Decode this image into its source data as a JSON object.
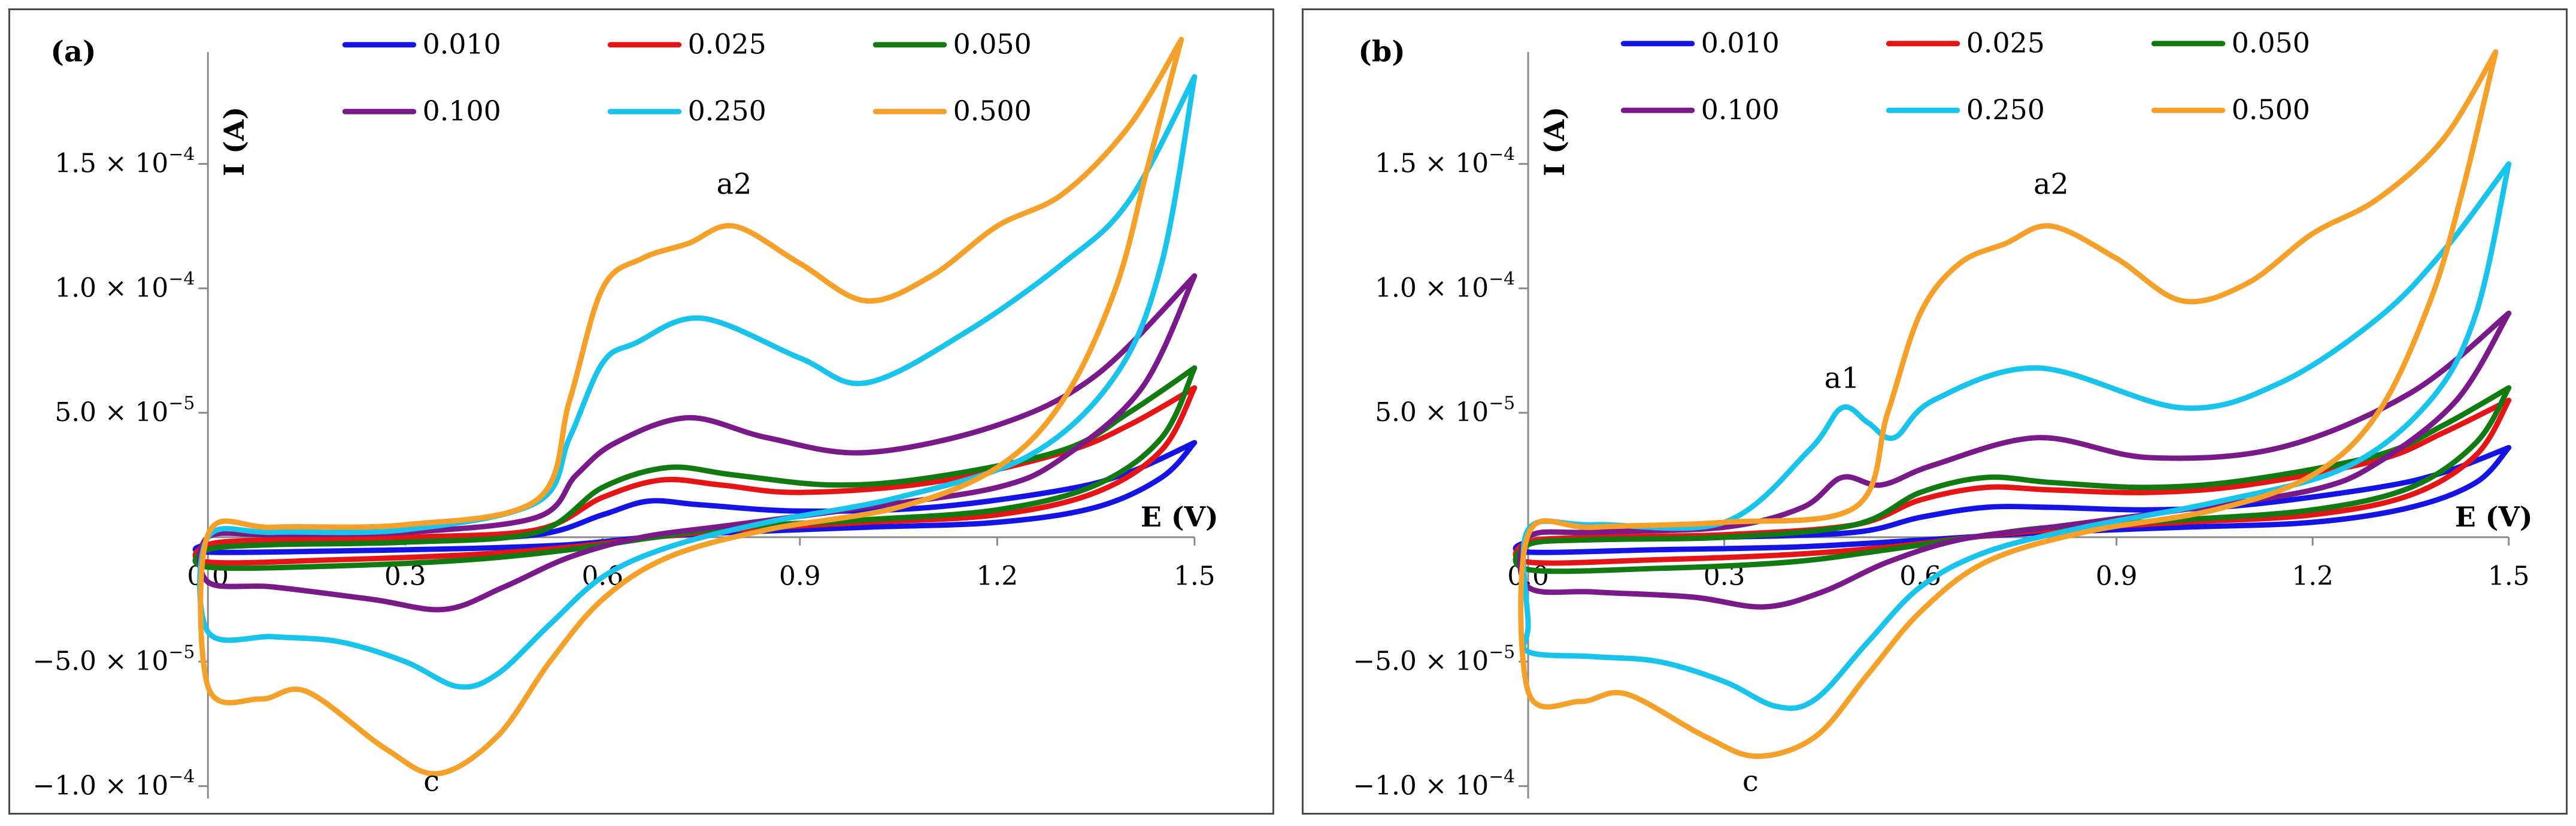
{
  "chart_data": [
    {
      "type": "line",
      "panel_label": "(a)",
      "xlabel": "E (V)",
      "ylabel": "I (A)",
      "xlim": [
        0,
        1.5
      ],
      "ylim": [
        -0.000105,
        0.000195
      ],
      "x_ticks": [
        {
          "value": 0.0,
          "label": "0.0"
        },
        {
          "value": 0.3,
          "label": "0.3"
        },
        {
          "value": 0.6,
          "label": "0.6"
        },
        {
          "value": 0.9,
          "label": "0.9"
        },
        {
          "value": 1.2,
          "label": "1.2"
        },
        {
          "value": 1.5,
          "label": "1.5"
        }
      ],
      "y_ticks": [
        {
          "value": 0.00015,
          "mantissa": "1.5",
          "exp": "−4"
        },
        {
          "value": 0.0001,
          "mantissa": "1.0",
          "exp": "−4"
        },
        {
          "value": 5e-05,
          "mantissa": "5.0",
          "exp": "−5"
        },
        {
          "value": -5e-05,
          "mantissa": "−5.0",
          "exp": "−5"
        },
        {
          "value": -0.0001,
          "mantissa": "−1.0",
          "exp": "−4"
        }
      ],
      "annotations": [
        {
          "text": "a2",
          "x": 0.8,
          "y": 0.000138
        },
        {
          "text": "c",
          "x": 0.34,
          "y": -0.000102
        }
      ],
      "series": [
        {
          "name": "0.010",
          "color": "#1414e6",
          "x": [
            1.5,
            1.45,
            1.35,
            1.2,
            1.0,
            0.8,
            0.67,
            0.55,
            0.4,
            0.2,
            0.0,
            0.0,
            0.1,
            0.3,
            0.5,
            0.6,
            0.67,
            0.75,
            0.9,
            1.1,
            1.3,
            1.4,
            1.5
          ],
          "y": [
            3.8e-05,
            2.4e-05,
            1.2e-05,
            6e-06,
            4e-06,
            2e-06,
            0,
            -3e-06,
            -4.5e-06,
            -5.5e-06,
            -6e-06,
            -3e-06,
            -2e-06,
            -1e-06,
            1e-06,
            9e-06,
            1.45e-05,
            1.3e-05,
            1.05e-05,
            1.2e-05,
            1.9e-05,
            2.6e-05,
            3.8e-05
          ]
        },
        {
          "name": "0.025",
          "color": "#e61414",
          "x": [
            1.5,
            1.45,
            1.35,
            1.2,
            1.0,
            0.8,
            0.68,
            0.55,
            0.4,
            0.2,
            0.0,
            0.0,
            0.1,
            0.3,
            0.5,
            0.6,
            0.69,
            0.78,
            0.9,
            1.1,
            1.3,
            1.4,
            1.5
          ],
          "y": [
            6e-05,
            3.5e-05,
            1.8e-05,
            9e-06,
            6e-06,
            3e-06,
            0,
            -4e-06,
            -7e-06,
            -9e-06,
            -1e-05,
            -3e-06,
            -1e-06,
            0,
            3e-06,
            1.6e-05,
            2.3e-05,
            2.1e-05,
            1.8e-05,
            2.2e-05,
            3.4e-05,
            4.5e-05,
            6e-05
          ]
        },
        {
          "name": "0.050",
          "color": "#117a11",
          "x": [
            1.5,
            1.45,
            1.35,
            1.2,
            1.0,
            0.8,
            0.68,
            0.55,
            0.4,
            0.2,
            0.0,
            0.0,
            0.1,
            0.3,
            0.5,
            0.6,
            0.7,
            0.8,
            0.95,
            1.1,
            1.3,
            1.4,
            1.5
          ],
          "y": [
            6.8e-05,
            4e-05,
            2.1e-05,
            1.1e-05,
            7e-06,
            4e-06,
            0,
            -5e-06,
            -9e-06,
            -1.15e-05,
            -1.2e-05,
            -5e-06,
            -3e-06,
            -2e-06,
            2e-06,
            2e-05,
            2.8e-05,
            2.5e-05,
            2.1e-05,
            2.4e-05,
            3.5e-05,
            5e-05,
            6.8e-05
          ]
        },
        {
          "name": "0.100",
          "color": "#7a1a8a",
          "x": [
            1.5,
            1.42,
            1.3,
            1.2,
            1.0,
            0.8,
            0.66,
            0.55,
            0.45,
            0.36,
            0.25,
            0.1,
            0.0,
            0.0,
            0.1,
            0.3,
            0.5,
            0.56,
            0.62,
            0.73,
            0.85,
            1.0,
            1.2,
            1.35,
            1.5
          ],
          "y": [
            0.000105,
            6e-05,
            3.2e-05,
            2e-05,
            1.2e-05,
            5e-06,
            0,
            -8e-06,
            -2e-05,
            -2.9e-05,
            -2.5e-05,
            -2e-05,
            -1.8e-05,
            0,
            1e-06,
            2e-06,
            8e-06,
            2.5e-05,
            3.8e-05,
            4.8e-05,
            4e-05,
            3.4e-05,
            4.5e-05,
            6.5e-05,
            0.000105
          ]
        },
        {
          "name": "0.250",
          "color": "#18c4ec",
          "x": [
            1.5,
            1.45,
            1.38,
            1.25,
            1.05,
            0.85,
            0.7,
            0.6,
            0.52,
            0.44,
            0.38,
            0.3,
            0.2,
            0.1,
            0.0,
            0.0,
            0.1,
            0.3,
            0.5,
            0.55,
            0.6,
            0.65,
            0.75,
            0.9,
            1.0,
            1.15,
            1.3,
            1.4,
            1.5
          ],
          "y": [
            0.000185,
            0.00011,
            6.5e-05,
            3.3e-05,
            1.6e-05,
            6e-06,
            -4e-06,
            -1.6e-05,
            -3.5e-05,
            -5.5e-05,
            -6e-05,
            -5e-05,
            -4.2e-05,
            -4e-05,
            -3.8e-05,
            0,
            2e-06,
            3e-06,
            1.4e-05,
            4e-05,
            7e-05,
            7.8e-05,
            8.8e-05,
            7.2e-05,
            6.2e-05,
            8.2e-05,
            0.00011,
            0.000135,
            0.000185
          ]
        },
        {
          "name": "0.500",
          "color": "#f5a028",
          "x": [
            1.48,
            1.43,
            1.38,
            1.3,
            1.2,
            1.05,
            0.85,
            0.7,
            0.6,
            0.52,
            0.44,
            0.35,
            0.27,
            0.15,
            0.08,
            0.0,
            0.0,
            0.1,
            0.3,
            0.5,
            0.55,
            0.6,
            0.66,
            0.73,
            0.8,
            0.9,
            1.0,
            1.1,
            1.2,
            1.3,
            1.4,
            1.48
          ],
          "y": [
            0.0002,
            0.00015,
            0.0001,
            5.5e-05,
            2.8e-05,
            1.2e-05,
            3e-06,
            -8e-06,
            -2.5e-05,
            -5e-05,
            -8e-05,
            -9.5e-05,
            -8.5e-05,
            -6.2e-05,
            -6.5e-05,
            -6e-05,
            1e-06,
            4e-06,
            5e-06,
            1.5e-05,
            5.5e-05,
            0.0001,
            0.000112,
            0.000118,
            0.000125,
            0.00011,
            9.5e-05,
            0.000105,
            0.000125,
            0.000138,
            0.000165,
            0.0002
          ]
        }
      ]
    },
    {
      "type": "line",
      "panel_label": "(b)",
      "xlabel": "E (V)",
      "ylabel": "I (A)",
      "xlim": [
        0,
        1.5
      ],
      "ylim": [
        -0.000105,
        0.000195
      ],
      "x_ticks": [
        {
          "value": 0.0,
          "label": "0.0"
        },
        {
          "value": 0.3,
          "label": "0.3"
        },
        {
          "value": 0.6,
          "label": "0.6"
        },
        {
          "value": 0.9,
          "label": "0.9"
        },
        {
          "value": 1.2,
          "label": "1.2"
        },
        {
          "value": 1.5,
          "label": "1.5"
        }
      ],
      "y_ticks": [
        {
          "value": 0.00015,
          "mantissa": "1.5",
          "exp": "−4"
        },
        {
          "value": 0.0001,
          "mantissa": "1.0",
          "exp": "−4"
        },
        {
          "value": 5e-05,
          "mantissa": "5.0",
          "exp": "−5"
        },
        {
          "value": -5e-05,
          "mantissa": "−5.0",
          "exp": "−5"
        },
        {
          "value": -0.0001,
          "mantissa": "−1.0",
          "exp": "−4"
        }
      ],
      "annotations": [
        {
          "text": "a1",
          "x": 0.48,
          "y": 6e-05
        },
        {
          "text": "a2",
          "x": 0.8,
          "y": 0.000138
        },
        {
          "text": "c",
          "x": 0.34,
          "y": -0.000102
        }
      ],
      "series": [
        {
          "name": "0.010",
          "color": "#1414e6",
          "x": [
            1.5,
            1.45,
            1.35,
            1.2,
            1.0,
            0.8,
            0.67,
            0.55,
            0.4,
            0.2,
            0.0,
            0.0,
            0.1,
            0.3,
            0.5,
            0.6,
            0.7,
            0.8,
            0.95,
            1.1,
            1.3,
            1.4,
            1.5
          ],
          "y": [
            3.6e-05,
            2.2e-05,
            1.2e-05,
            6e-06,
            4e-06,
            2e-06,
            0,
            -2e-06,
            -4e-06,
            -5e-06,
            -6e-06,
            -2e-06,
            -1e-06,
            0,
            2e-06,
            8e-06,
            1.2e-05,
            1.2e-05,
            1.1e-05,
            1.3e-05,
            2e-05,
            2.6e-05,
            3.6e-05
          ]
        },
        {
          "name": "0.025",
          "color": "#e61414",
          "x": [
            1.5,
            1.45,
            1.35,
            1.2,
            1.0,
            0.8,
            0.68,
            0.55,
            0.4,
            0.2,
            0.0,
            0.0,
            0.1,
            0.3,
            0.5,
            0.6,
            0.7,
            0.8,
            0.95,
            1.1,
            1.3,
            1.4,
            1.5
          ],
          "y": [
            5.5e-05,
            3.3e-05,
            1.7e-05,
            9e-06,
            6e-06,
            3e-06,
            0,
            -4e-06,
            -7e-06,
            -9e-06,
            -1e-05,
            -2e-06,
            0,
            1e-06,
            5e-06,
            1.5e-05,
            2e-05,
            1.9e-05,
            1.8e-05,
            2.1e-05,
            3.1e-05,
            4.2e-05,
            5.5e-05
          ]
        },
        {
          "name": "0.050",
          "color": "#117a11",
          "x": [
            1.5,
            1.45,
            1.35,
            1.2,
            1.0,
            0.8,
            0.68,
            0.55,
            0.4,
            0.2,
            0.0,
            0.0,
            0.1,
            0.3,
            0.5,
            0.6,
            0.7,
            0.8,
            0.95,
            1.1,
            1.3,
            1.4,
            1.5
          ],
          "y": [
            6e-05,
            3.8e-05,
            2e-05,
            1.1e-05,
            7e-06,
            4e-06,
            0,
            -5e-06,
            -1e-05,
            -1.25e-05,
            -1.3e-05,
            -3e-06,
            -1e-06,
            0,
            5e-06,
            1.8e-05,
            2.4e-05,
            2.2e-05,
            2e-05,
            2.3e-05,
            3.3e-05,
            4.5e-05,
            6e-05
          ]
        },
        {
          "name": "0.100",
          "color": "#7a1a8a",
          "x": [
            1.5,
            1.42,
            1.3,
            1.2,
            1.0,
            0.8,
            0.66,
            0.55,
            0.45,
            0.36,
            0.25,
            0.1,
            0.0,
            0.0,
            0.1,
            0.3,
            0.42,
            0.48,
            0.54,
            0.62,
            0.78,
            0.95,
            1.15,
            1.35,
            1.5
          ],
          "y": [
            9e-05,
            5.5e-05,
            3e-05,
            1.9e-05,
            1.1e-05,
            4e-06,
            -1e-06,
            -1e-05,
            -2.2e-05,
            -2.8e-05,
            -2.4e-05,
            -2.2e-05,
            -2e-05,
            0,
            2e-06,
            4e-06,
            1.2e-05,
            2.4e-05,
            2.1e-05,
            2.9e-05,
            4e-05,
            3.2e-05,
            3.6e-05,
            5.8e-05,
            9e-05
          ]
        },
        {
          "name": "0.250",
          "color": "#18c4ec",
          "x": [
            1.5,
            1.45,
            1.38,
            1.25,
            1.05,
            0.85,
            0.7,
            0.6,
            0.52,
            0.44,
            0.38,
            0.3,
            0.2,
            0.1,
            0.0,
            0.0,
            0.0,
            0.1,
            0.3,
            0.43,
            0.48,
            0.52,
            0.56,
            0.62,
            0.78,
            1.0,
            1.15,
            1.3,
            1.4,
            1.5
          ],
          "y": [
            0.00015,
            9e-05,
            5.5e-05,
            2.8e-05,
            1.4e-05,
            4e-06,
            -6e-06,
            -2e-05,
            -4.2e-05,
            -6.5e-05,
            -6.8e-05,
            -5.8e-05,
            -5e-05,
            -4.8e-05,
            -4.6e-05,
            -3.5e-05,
            3e-06,
            5e-06,
            6e-06,
            3.5e-05,
            5.2e-05,
            4.6e-05,
            4e-05,
            5.5e-05,
            6.8e-05,
            5.2e-05,
            6.2e-05,
            8.8e-05,
            0.000115,
            0.00015
          ]
        },
        {
          "name": "0.500",
          "color": "#f5a028",
          "x": [
            1.48,
            1.43,
            1.38,
            1.3,
            1.2,
            1.05,
            0.85,
            0.7,
            0.6,
            0.52,
            0.44,
            0.35,
            0.27,
            0.15,
            0.08,
            0.0,
            0.0,
            0.1,
            0.3,
            0.5,
            0.55,
            0.6,
            0.66,
            0.73,
            0.8,
            0.9,
            1.0,
            1.1,
            1.2,
            1.3,
            1.4,
            1.48
          ],
          "y": [
            0.000195,
            0.00014,
            9.5e-05,
            5e-05,
            2.5e-05,
            1.1e-05,
            2e-06,
            -1e-05,
            -3e-05,
            -5.5e-05,
            -8e-05,
            -8.8e-05,
            -8e-05,
            -6.3e-05,
            -6.6e-05,
            -6.2e-05,
            1e-06,
            4e-06,
            6e-06,
            1.2e-05,
            5e-05,
            9e-05,
            0.00011,
            0.000118,
            0.000125,
            0.000112,
            9.5e-05,
            0.000102,
            0.000122,
            0.000136,
            0.00016,
            0.000195
          ]
        }
      ]
    }
  ]
}
